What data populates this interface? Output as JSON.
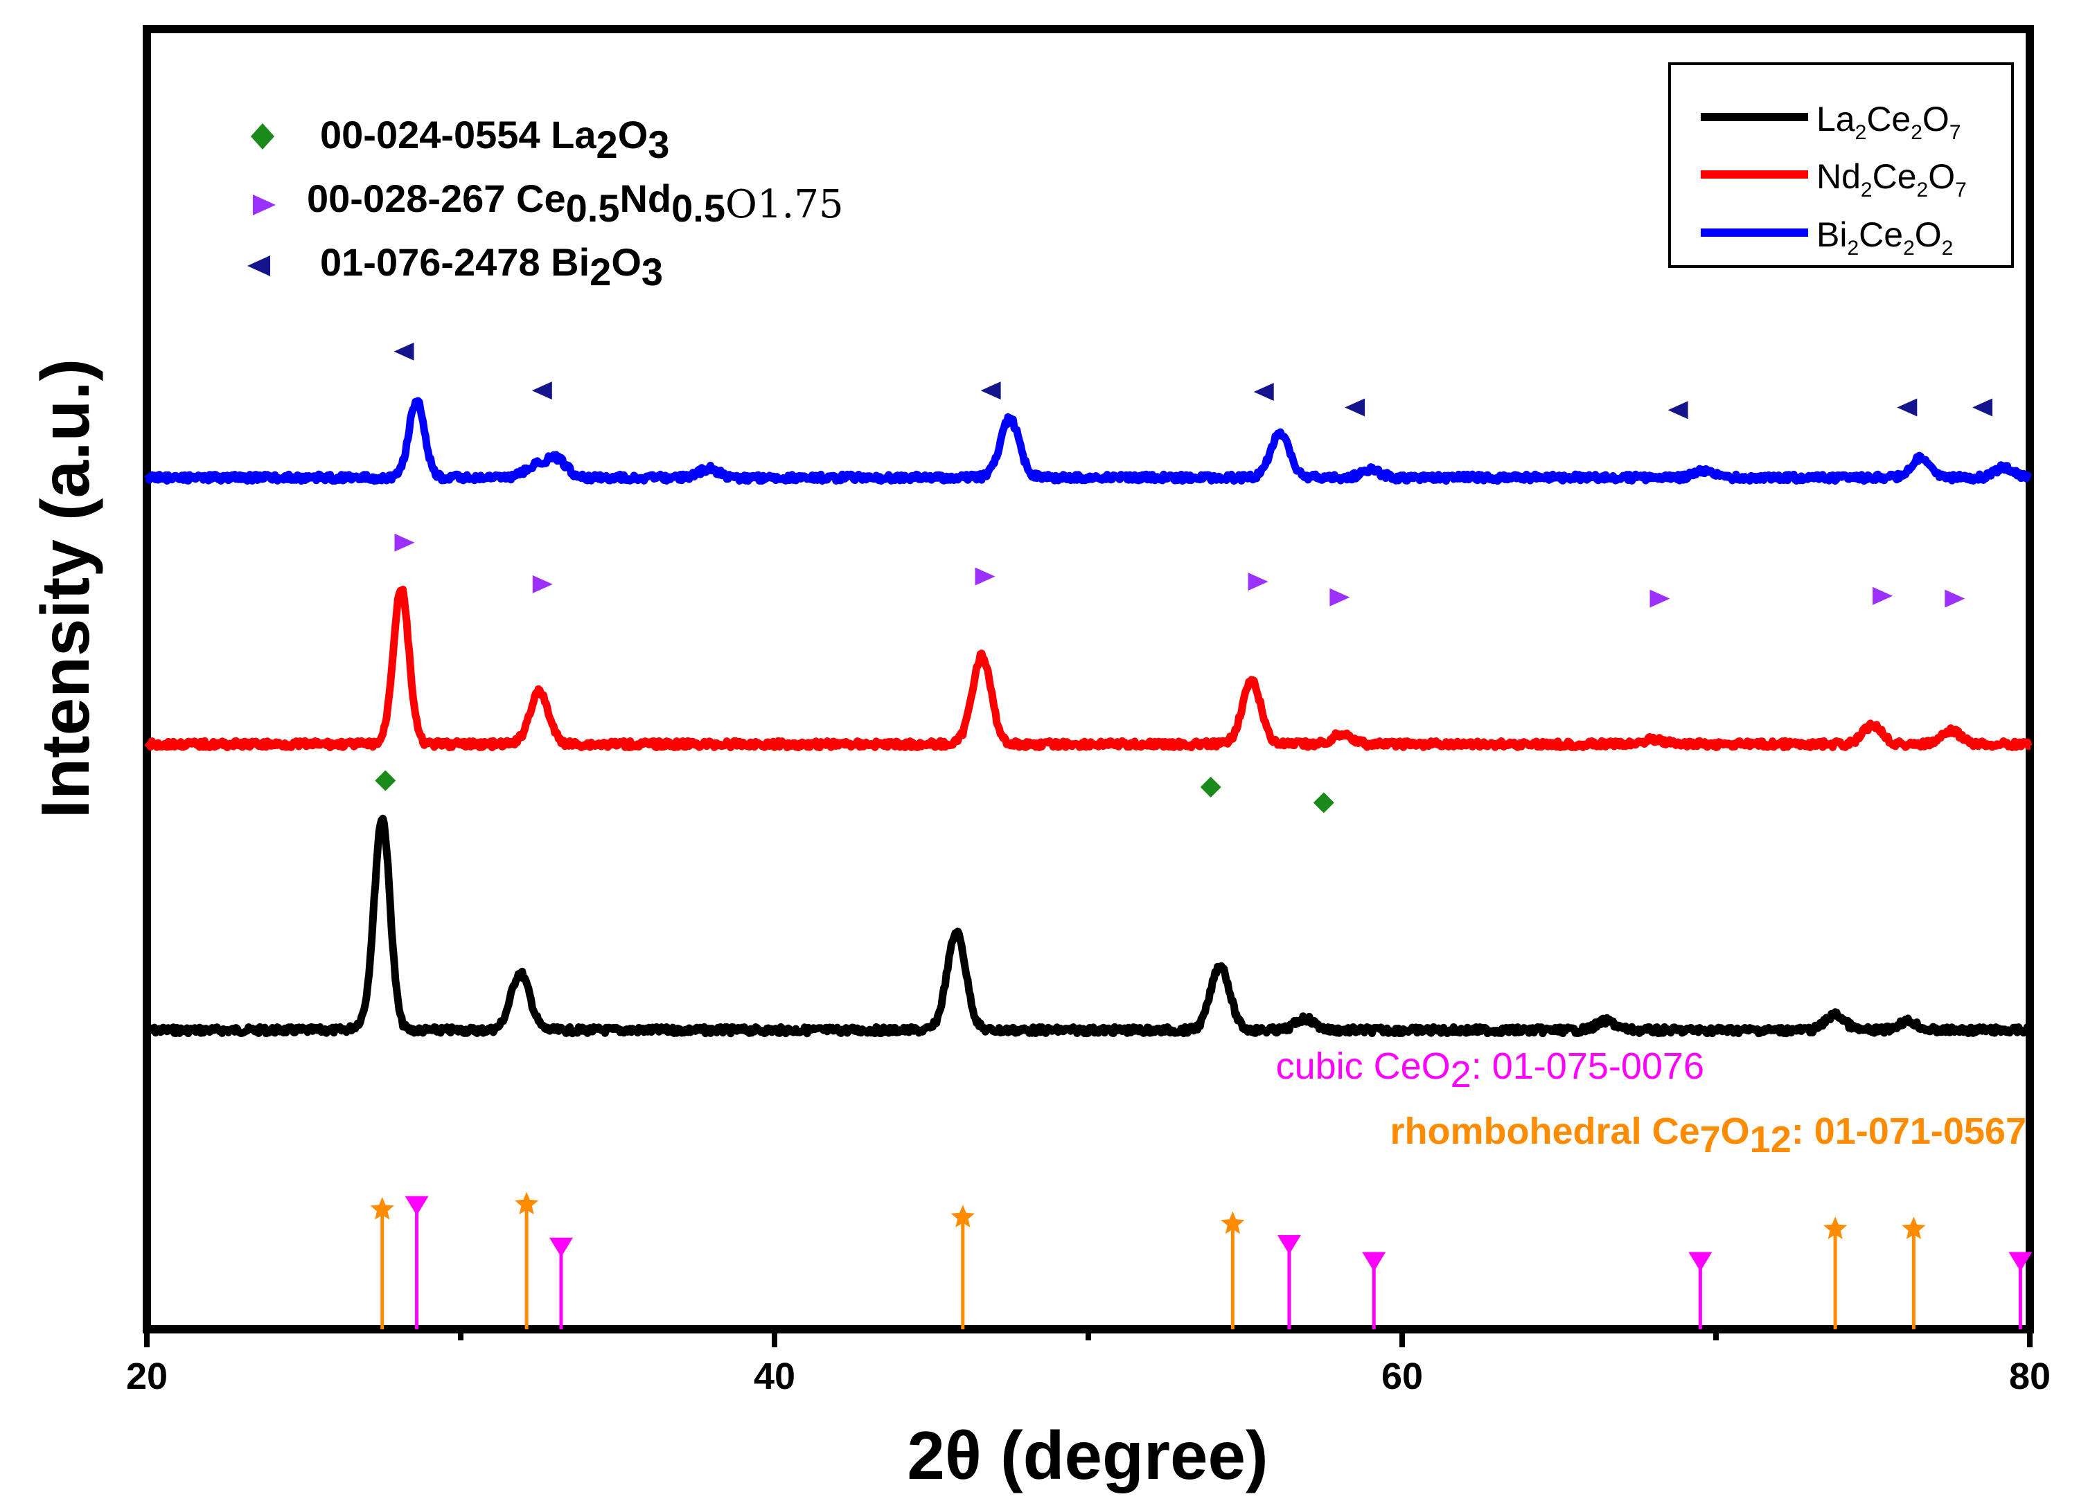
{
  "chart_data": {
    "type": "line",
    "title": "",
    "xlabel": "2θ (degree)",
    "ylabel": "Intensity (a.u.)",
    "xlim": [
      20,
      80
    ],
    "x_ticks": [
      20,
      40,
      60,
      80
    ],
    "x_minor_ticks": [
      30,
      50,
      70
    ],
    "grid": false,
    "y_unit": "a.u. (offset traces, 0 = top of plot, 100 = bottom axis)",
    "legend": {
      "position": "top-right",
      "entries": [
        {
          "series": "La2Ce2O7",
          "base": "La",
          "sub1": "2",
          "mid": "Ce",
          "sub2": "2",
          "tail": "O",
          "sub3": "7",
          "color": "#000000"
        },
        {
          "series": "Nd2Ce2O7",
          "base": "Nd",
          "sub1": "2",
          "mid": "Ce",
          "sub2": "2",
          "tail": "O",
          "sub3": "7",
          "color": "#ff0000"
        },
        {
          "series": "Bi2Ce2O2",
          "base": "Bi",
          "sub1": "2",
          "mid": "Ce",
          "sub2": "2",
          "tail": "O",
          "sub3": "2",
          "color": "#0000ff"
        }
      ]
    },
    "series": [
      {
        "name": "La2Ce2O7",
        "color": "#000000",
        "baseline": 77.0,
        "noise": 0.25,
        "peaks": [
          [
            27.5,
            16.2,
            0.25
          ],
          [
            27.0,
            0.6,
            0.3
          ],
          [
            31.9,
            4.4,
            0.3
          ],
          [
            45.8,
            7.5,
            0.3
          ],
          [
            54.2,
            5.0,
            0.3
          ],
          [
            56.9,
            0.9,
            0.3
          ],
          [
            66.5,
            0.7,
            0.3
          ],
          [
            73.8,
            1.2,
            0.3
          ],
          [
            76.1,
            0.7,
            0.3
          ]
        ]
      },
      {
        "name": "Nd2Ce2O7",
        "color": "#ff0000",
        "baseline": 55.0,
        "noise": 0.25,
        "peaks": [
          [
            28.1,
            12.0,
            0.25
          ],
          [
            32.5,
            4.0,
            0.3
          ],
          [
            46.6,
            6.8,
            0.3
          ],
          [
            55.2,
            4.8,
            0.3
          ],
          [
            58.1,
            0.8,
            0.3
          ],
          [
            68.0,
            0.4,
            0.3
          ],
          [
            75.0,
            1.5,
            0.3
          ],
          [
            77.5,
            1.0,
            0.3
          ]
        ]
      },
      {
        "name": "Bi2Ce2O2",
        "color": "#0000ff",
        "baseline": 34.5,
        "noise": 0.25,
        "peaks": [
          [
            28.6,
            5.9,
            0.25
          ],
          [
            33.0,
            1.5,
            0.35
          ],
          [
            32.3,
            0.7,
            0.3
          ],
          [
            37.9,
            0.7,
            0.3
          ],
          [
            47.5,
            4.5,
            0.3
          ],
          [
            56.1,
            3.4,
            0.3
          ],
          [
            59.0,
            0.6,
            0.3
          ],
          [
            69.6,
            0.5,
            0.3
          ],
          [
            76.5,
            1.5,
            0.3
          ],
          [
            79.2,
            0.8,
            0.3
          ]
        ]
      }
    ],
    "peak_markers": {
      "La2O3": {
        "symbol": "diamond",
        "color": "#1a8a1a",
        "points": [
          [
            27.6,
            57.8
          ],
          [
            53.9,
            58.3
          ],
          [
            57.5,
            59.5
          ]
        ]
      },
      "Ce0.5Nd0.5O1.75": {
        "symbol": "triangle-right",
        "color": "#9b30ff",
        "points": [
          [
            28.2,
            39.5
          ],
          [
            32.6,
            42.7
          ],
          [
            46.7,
            42.1
          ],
          [
            55.4,
            42.5
          ],
          [
            58.0,
            43.7
          ],
          [
            68.2,
            43.8
          ],
          [
            75.3,
            43.6
          ],
          [
            77.6,
            43.8
          ]
        ]
      },
      "Bi2O3": {
        "symbol": "triangle-left",
        "color": "#14148c",
        "points": [
          [
            28.2,
            24.8
          ],
          [
            32.6,
            27.8
          ],
          [
            46.9,
            27.8
          ],
          [
            55.6,
            27.9
          ],
          [
            58.5,
            29.1
          ],
          [
            68.8,
            29.3
          ],
          [
            76.1,
            29.1
          ],
          [
            78.5,
            29.1
          ]
        ]
      }
    },
    "reference_patterns": {
      "cubic_CeO2": {
        "code": "01-075-0076",
        "color": "#ff00ff",
        "symbol": "triangle-down",
        "x": [
          28.6,
          33.2,
          56.4,
          59.1,
          69.5,
          79.7
        ],
        "top": [
          90.5,
          93.7,
          93.5,
          94.8,
          94.8,
          94.8
        ]
      },
      "rhombohedral_Ce7O12": {
        "code": "01-071-0567",
        "color": "#ff8c00",
        "symbol": "star",
        "x": [
          27.5,
          32.1,
          46.0,
          54.6,
          73.8,
          76.3
        ],
        "top": [
          91.0,
          90.6,
          91.6,
          92.1,
          92.5,
          92.5
        ]
      }
    }
  },
  "marker_legend": [
    {
      "code": "00-024-0554",
      "base": "La",
      "sub1": "2",
      "tail": "O",
      "sub2": "3",
      "sub_trail": ""
    },
    {
      "code": "00-028-267",
      "base": "Ce",
      "sub1": "0.5",
      "tail": "Nd",
      "sub2": "0.5",
      "sub_trail": "O1.75"
    },
    {
      "code": "01-076-2478",
      "base": "Bi",
      "sub1": "2",
      "tail": "O",
      "sub2": "3",
      "sub_trail": ""
    }
  ],
  "ref_labels": {
    "cubic": {
      "prefix": "cubic CeO",
      "sub": "2",
      "suffix": ": 01-075-0076"
    },
    "rhombo": {
      "prefix": "rhombohedral Ce",
      "sub1": "7",
      "mid": "O",
      "sub2": "12",
      "suffix": ": 01-071-0567"
    }
  }
}
